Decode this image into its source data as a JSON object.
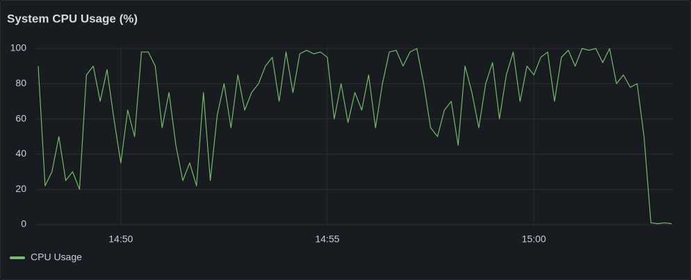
{
  "chart_data": {
    "type": "line",
    "title": "System CPU Usage (%)",
    "x": [
      "14:48:00",
      "14:48:10",
      "14:48:20",
      "14:48:30",
      "14:48:40",
      "14:48:50",
      "14:49:00",
      "14:49:10",
      "14:49:20",
      "14:49:30",
      "14:49:40",
      "14:49:50",
      "14:50:00",
      "14:50:10",
      "14:50:20",
      "14:50:30",
      "14:50:40",
      "14:50:50",
      "14:51:00",
      "14:51:10",
      "14:51:20",
      "14:51:30",
      "14:51:40",
      "14:51:50",
      "14:52:00",
      "14:52:10",
      "14:52:20",
      "14:52:30",
      "14:52:40",
      "14:52:50",
      "14:53:00",
      "14:53:10",
      "14:53:20",
      "14:53:30",
      "14:53:40",
      "14:53:50",
      "14:54:00",
      "14:54:10",
      "14:54:20",
      "14:54:30",
      "14:54:40",
      "14:54:50",
      "14:55:00",
      "14:55:10",
      "14:55:20",
      "14:55:30",
      "14:55:40",
      "14:55:50",
      "14:56:00",
      "14:56:10",
      "14:56:20",
      "14:56:30",
      "14:56:40",
      "14:56:50",
      "14:57:00",
      "14:57:10",
      "14:57:20",
      "14:57:30",
      "14:57:40",
      "14:57:50",
      "14:58:00",
      "14:58:10",
      "14:58:20",
      "14:58:30",
      "14:58:40",
      "14:58:50",
      "14:59:00",
      "14:59:10",
      "14:59:20",
      "14:59:30",
      "14:59:40",
      "14:59:50",
      "15:00:00",
      "15:00:10",
      "15:00:20",
      "15:00:30",
      "15:00:40",
      "15:00:50",
      "15:01:00",
      "15:01:10",
      "15:01:20",
      "15:01:30",
      "15:01:40",
      "15:01:50",
      "15:02:00",
      "15:02:10",
      "15:02:20",
      "15:02:30",
      "15:02:40",
      "15:02:50",
      "15:03:00",
      "15:03:10",
      "15:03:20"
    ],
    "series": [
      {
        "name": "CPU Usage",
        "color": "#73bf69",
        "values": [
          90,
          22,
          30,
          50,
          25,
          30,
          20,
          85,
          90,
          70,
          88,
          60,
          35,
          65,
          50,
          98,
          98,
          90,
          55,
          75,
          45,
          25,
          35,
          22,
          75,
          25,
          62,
          80,
          55,
          85,
          65,
          75,
          80,
          90,
          95,
          70,
          98,
          75,
          97,
          99,
          97,
          98,
          95,
          60,
          80,
          58,
          75,
          65,
          85,
          55,
          80,
          98,
          99,
          90,
          98,
          100,
          80,
          55,
          50,
          65,
          70,
          45,
          90,
          75,
          55,
          80,
          92,
          60,
          85,
          98,
          70,
          90,
          85,
          95,
          98,
          70,
          95,
          99,
          90,
          100,
          99,
          100,
          92,
          100,
          80,
          85,
          78,
          80,
          50,
          1,
          0.5,
          1,
          0.5
        ]
      }
    ],
    "xlim": [
      "14:47:57",
      "15:03:22"
    ],
    "xticks": [
      "14:50",
      "14:55",
      "15:00"
    ],
    "ylim": [
      0,
      100
    ],
    "yticks": [
      0,
      20,
      40,
      60,
      80,
      100
    ],
    "grid": true,
    "legend": "bottom-left"
  }
}
